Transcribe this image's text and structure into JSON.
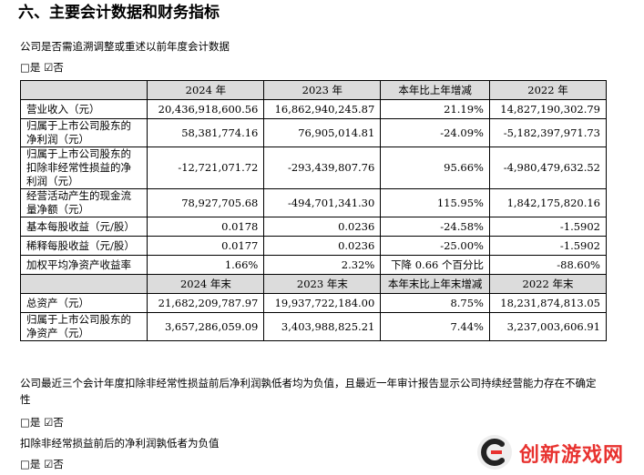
{
  "section_title": "六、主要会计数据和财务指标",
  "intro_question": "公司是否需追溯调整或重述以前年度会计数据",
  "intro_choice": "□是 ☑否",
  "table": {
    "header1": [
      "",
      "2024 年",
      "2023 年",
      "本年比上年增减",
      "2022 年"
    ],
    "rows1": [
      {
        "label": "营业收入（元）",
        "v2024": "20,436,918,600.56",
        "v2023": "16,862,940,245.87",
        "change": "21.19%",
        "v2022": "14,827,190,302.79"
      },
      {
        "label": "归属于上市公司股东的净利润（元）",
        "v2024": "58,381,774.16",
        "v2023": "76,905,014.81",
        "change": "-24.09%",
        "v2022": "-5,182,397,971.73"
      },
      {
        "label": "归属于上市公司股东的扣除非经常性损益的净利润（元）",
        "v2024": "-12,721,071.72",
        "v2023": "-293,439,807.76",
        "change": "95.66%",
        "v2022": "-4,980,479,632.52"
      },
      {
        "label": "经营活动产生的现金流量净额（元）",
        "v2024": "78,927,705.68",
        "v2023": "-494,701,341.30",
        "change": "115.95%",
        "v2022": "1,842,175,820.16"
      },
      {
        "label": "基本每股收益（元/股）",
        "v2024": "0.0178",
        "v2023": "0.0236",
        "change": "-24.58%",
        "v2022": "-1.5902"
      },
      {
        "label": "稀释每股收益（元/股）",
        "v2024": "0.0177",
        "v2023": "0.0236",
        "change": "-25.00%",
        "v2022": "-1.5902"
      },
      {
        "label": "加权平均净资产收益率",
        "v2024": "1.66%",
        "v2023": "2.32%",
        "change": "下降 0.66 个百分比",
        "v2022": "-88.60%"
      }
    ],
    "header2": [
      "",
      "2024 年末",
      "2023 年末",
      "本年末比上年末增减",
      "2022 年末"
    ],
    "rows2": [
      {
        "label": "总资产（元）",
        "v2024": "21,682,209,787.97",
        "v2023": "19,937,722,184.00",
        "change": "8.75%",
        "v2022": "18,231,874,813.05"
      },
      {
        "label": "归属于上市公司股东的净资产（元）",
        "v2024": "3,657,286,059.09",
        "v2023": "3,403,988,825.21",
        "change": "7.44%",
        "v2022": "3,237,003,606.91"
      }
    ]
  },
  "note_text": "公司最近三个会计年度扣除非经常性损益前后净利润孰低者均为负值，且最近一年审计报告显示公司持续经营能力存在不确定性",
  "note_choice": "□是 ☑否",
  "note2_text": "扣除非经常损益前后的净利润孰低者为负值",
  "note2_choice": "□是 ☑否",
  "watermark": {
    "text": "创新游戏网",
    "color": "#e8322f"
  }
}
